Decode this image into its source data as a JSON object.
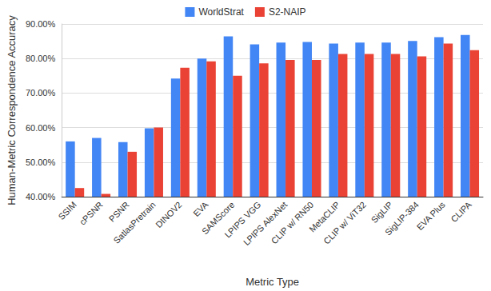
{
  "chart_data": {
    "type": "bar",
    "x_label": "Metric Type",
    "y_label": "Human-Metric Correspondence Accuracy",
    "categories": [
      "SSIM",
      "cPSNR",
      "PSNR",
      "SatlasPretrain",
      "DINOV2",
      "EVA",
      "SAMScore",
      "LPIPS VGG",
      "LPIPS AlexNet",
      "CLIP w/ RN50",
      "MetaCLIP",
      "CLIP w/ ViT32",
      "SigLIP",
      "SigLIP-384",
      "EVA Plus",
      "CLIPA"
    ],
    "series": [
      {
        "name": "WorldStrat",
        "color": "#4285f4",
        "values": [
          56.0,
          57.0,
          55.8,
          59.8,
          74.2,
          80.0,
          86.4,
          84.1,
          84.6,
          84.8,
          84.3,
          84.6,
          84.6,
          85.1,
          86.2,
          86.8
        ]
      },
      {
        "name": "S2-NAIP",
        "color": "#ea4335",
        "values": [
          42.5,
          40.8,
          53.0,
          60.0,
          77.3,
          79.2,
          75.0,
          78.6,
          79.6,
          79.6,
          81.3,
          81.3,
          81.3,
          80.6,
          84.3,
          82.4
        ]
      }
    ],
    "ylim": [
      40,
      90
    ],
    "yticks": [
      {
        "value": 40,
        "label": "40.00%"
      },
      {
        "value": 50,
        "label": "50.00%"
      },
      {
        "value": 60,
        "label": "60.00%"
      },
      {
        "value": 70,
        "label": "70.00%"
      },
      {
        "value": 80,
        "label": "80.00%"
      },
      {
        "value": 90,
        "label": "90.00%"
      }
    ],
    "grid": true,
    "legend": "top"
  }
}
